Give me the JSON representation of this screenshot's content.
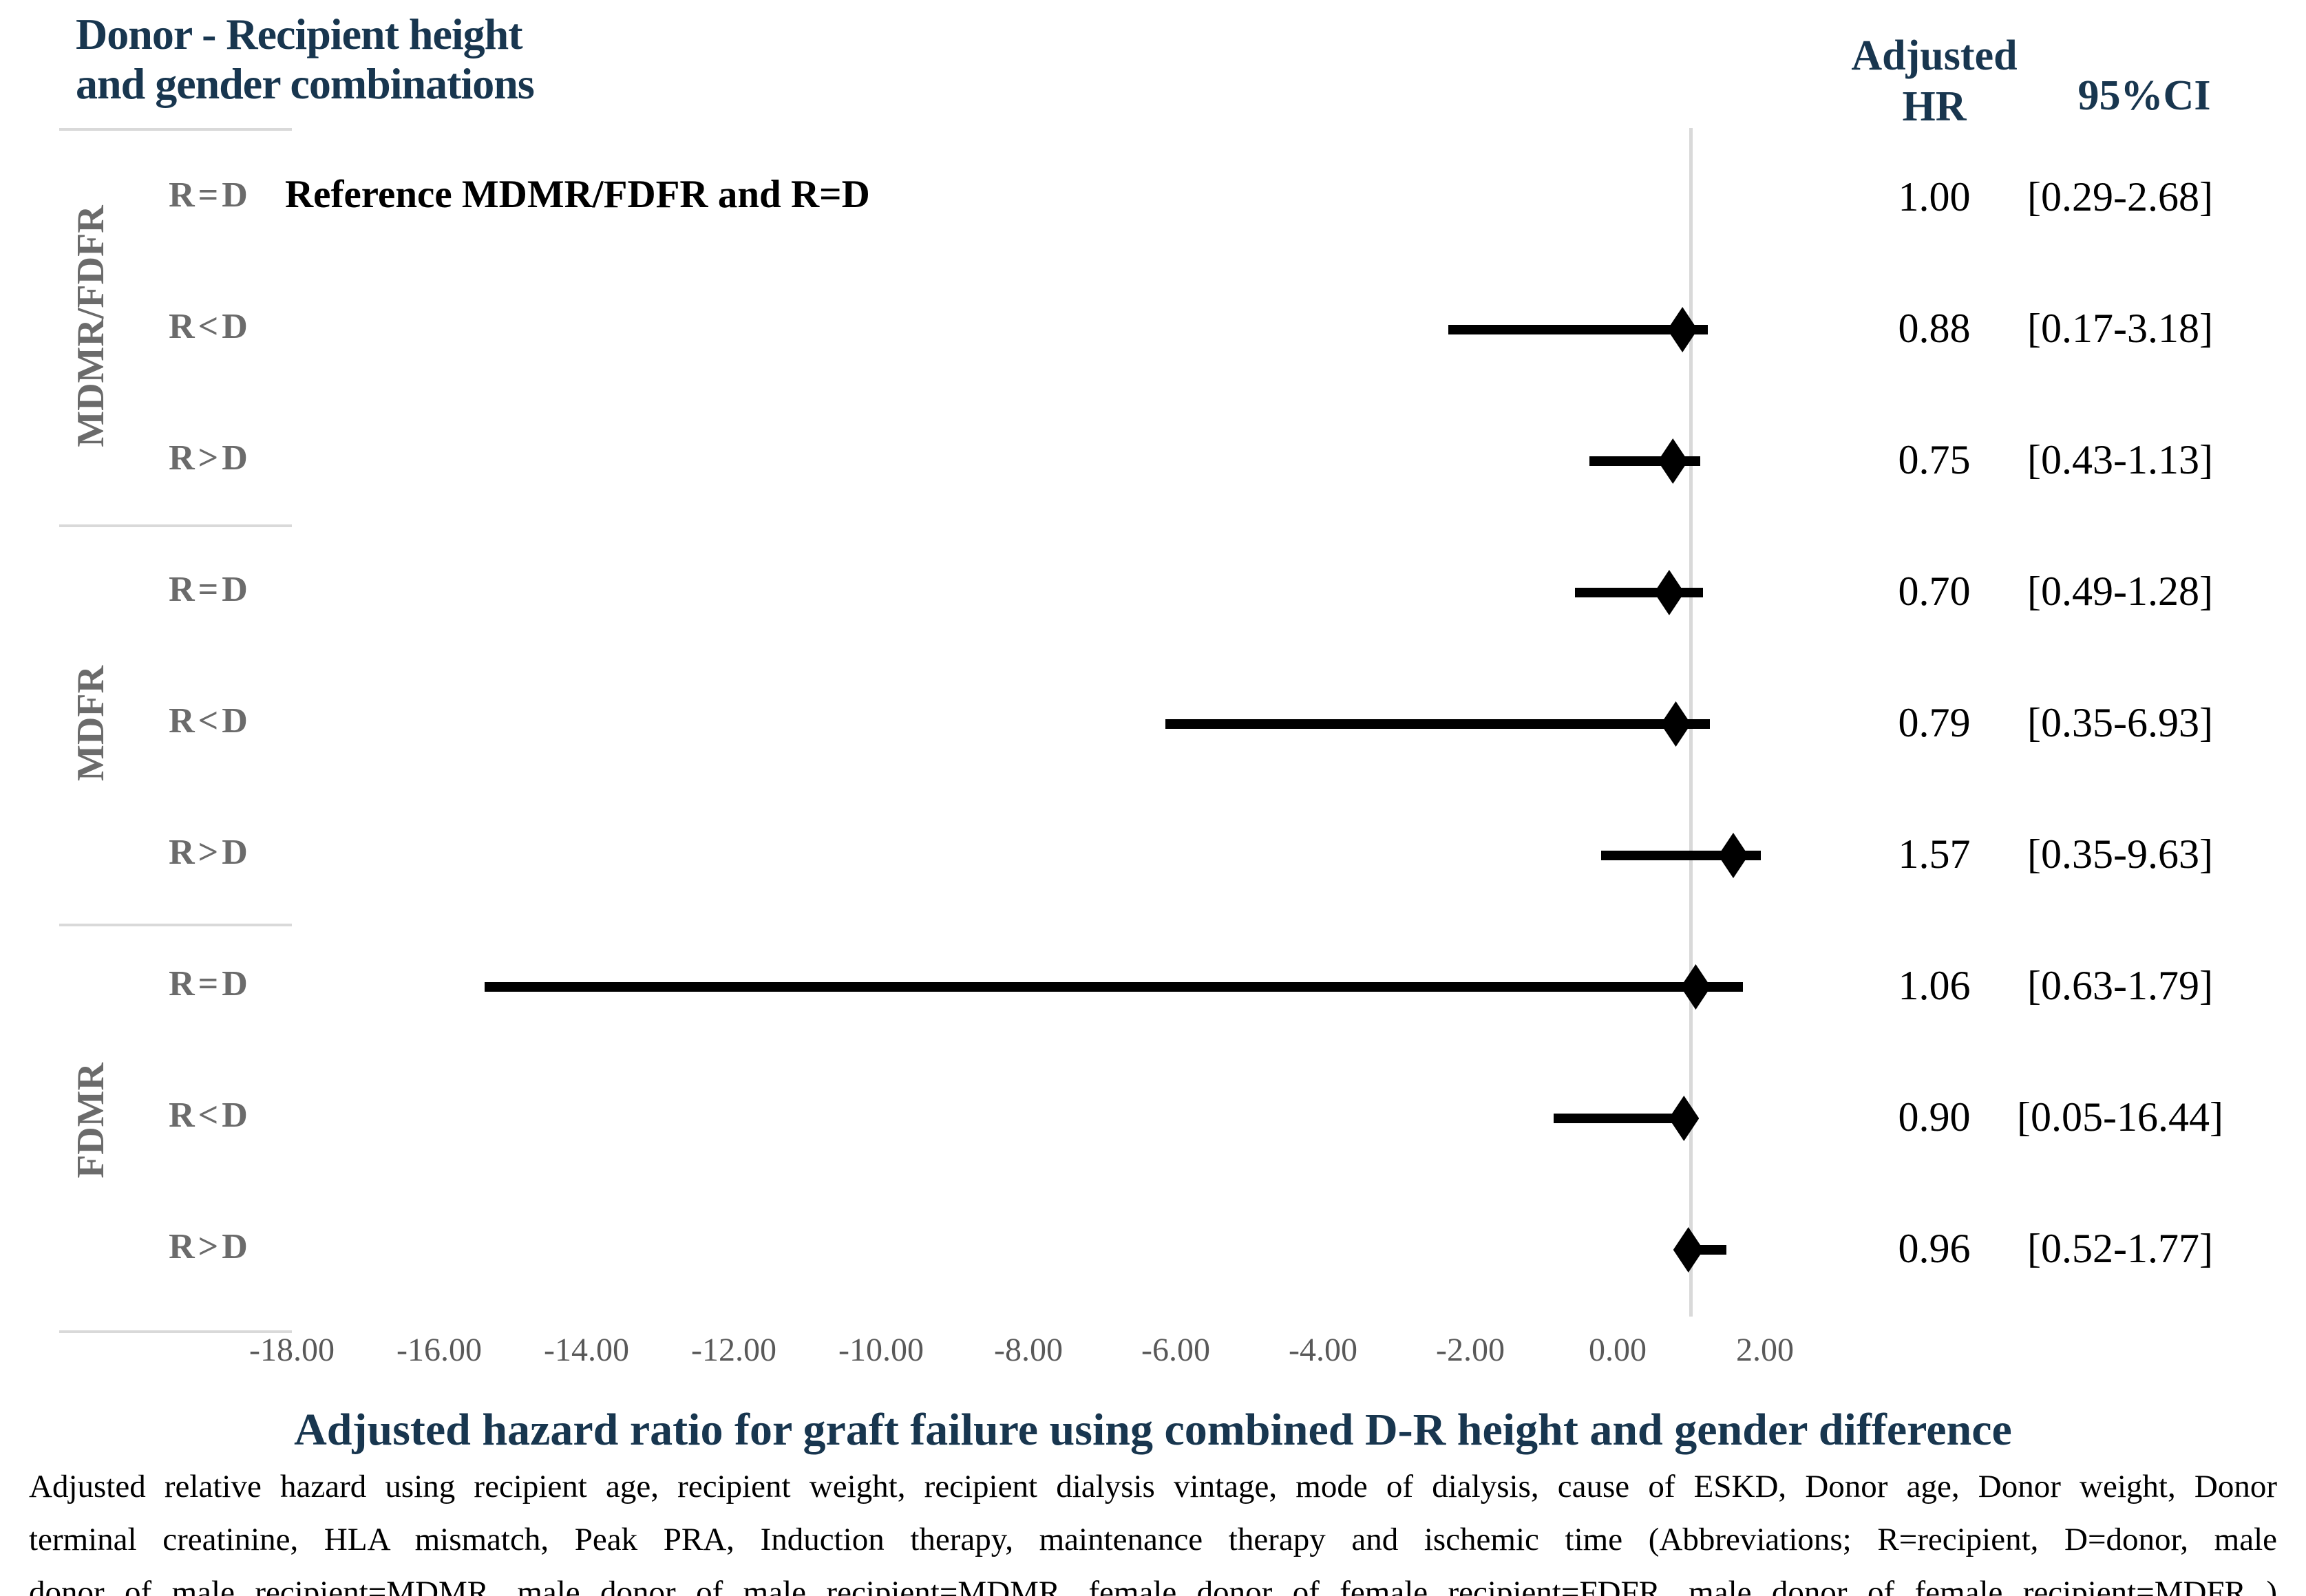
{
  "header": {
    "left_title_line1": "Donor - Recipient height",
    "left_title_line2": "and gender combinations",
    "col_hr_line1": "Adjusted",
    "col_hr_line2": "HR",
    "col_ci": "95%CI"
  },
  "chart_data": {
    "type": "forest",
    "title": "Adjusted hazard ratio for graft failure using combined D-R height and gender difference",
    "x_axis": {
      "min": -18,
      "max": 2,
      "step": 2,
      "tick_labels": [
        "-18.00",
        "-16.00",
        "-14.00",
        "-12.00",
        "-10.00",
        "-8.00",
        "-6.00",
        "-4.00",
        "-2.00",
        "0.00",
        "2.00"
      ],
      "reference_line_value": 1.0,
      "grid": false
    },
    "groups": [
      {
        "name": "MDMR/FDFR"
      },
      {
        "name": "MDFR"
      },
      {
        "name": "FDMR"
      }
    ],
    "rows": [
      {
        "group": "MDMR/FDFR",
        "label": "R=D",
        "reference_note": "Reference MDMR/FDFR and  R=D",
        "hr": 1.0,
        "ci_low": 0.29,
        "ci_high": 2.68,
        "hr_label": "1.00",
        "ci_label": "[0.29-2.68]",
        "marker": null,
        "bar_from": null,
        "bar_to": null
      },
      {
        "group": "MDMR/FDFR",
        "label": "R<D",
        "reference_note": null,
        "hr": 0.88,
        "ci_low": 0.17,
        "ci_high": 3.18,
        "hr_label": "0.88",
        "ci_label": "[0.17-3.18]",
        "marker": 0.88,
        "bar_from": -2.3,
        "bar_to": 1.22
      },
      {
        "group": "MDMR/FDFR",
        "label": "R>D",
        "reference_note": null,
        "hr": 0.75,
        "ci_low": 0.43,
        "ci_high": 1.13,
        "hr_label": "0.75",
        "ci_label": "[0.43-1.13]",
        "marker": 0.75,
        "bar_from": -0.38,
        "bar_to": 1.12
      },
      {
        "group": "MDFR",
        "label": "R=D",
        "reference_note": null,
        "hr": 0.7,
        "ci_low": 0.49,
        "ci_high": 1.28,
        "hr_label": "0.70",
        "ci_label": "[0.49-1.28]",
        "marker": 0.7,
        "bar_from": -0.58,
        "bar_to": 1.16
      },
      {
        "group": "MDFR",
        "label": "R<D",
        "reference_note": null,
        "hr": 0.79,
        "ci_low": 0.35,
        "ci_high": 6.93,
        "hr_label": "0.79",
        "ci_label": "[0.35-6.93]",
        "marker": 0.79,
        "bar_from": -6.14,
        "bar_to": 1.25
      },
      {
        "group": "MDFR",
        "label": "R>D",
        "reference_note": null,
        "hr": 1.57,
        "ci_low": 0.35,
        "ci_high": 9.63,
        "hr_label": "1.57",
        "ci_label": "[0.35-9.63]",
        "marker": 1.57,
        "bar_from": -0.22,
        "bar_to": 1.94
      },
      {
        "group": "FDMR",
        "label": "R=D",
        "reference_note": null,
        "hr": 1.06,
        "ci_low": 0.63,
        "ci_high": 1.79,
        "hr_label": "1.06",
        "ci_label": "[0.63-1.79]",
        "marker": 1.06,
        "bar_from": -15.38,
        "bar_to": 1.7
      },
      {
        "group": "FDMR",
        "label": "R<D",
        "reference_note": null,
        "hr": 0.9,
        "ci_low": 0.05,
        "ci_high": 16.44,
        "hr_label": "0.90",
        "ci_label": "[0.05-16.44]",
        "marker": 0.9,
        "bar_from": -0.87,
        "bar_to": 1.02
      },
      {
        "group": "FDMR",
        "label": "R>D",
        "reference_note": null,
        "hr": 0.96,
        "ci_low": 0.52,
        "ci_high": 1.77,
        "hr_label": "0.96",
        "ci_label": "[0.52-1.77]",
        "marker": 0.96,
        "bar_from": 0.96,
        "bar_to": 1.48
      }
    ]
  },
  "footer": {
    "title": "Adjusted hazard ratio for graft failure using combined D-R height and gender difference",
    "note_lines": [
      "Adjusted relative hazard using recipient age, recipient weight, recipient dialysis vintage, mode of dialysis, cause of ESKD, Donor age, Donor weight, Donor",
      "terminal creatinine, HLA mismatch, Peak PRA, Induction therapy, maintenance therapy and ischemic time (Abbreviations;  R=recipient, D=donor, male",
      "donor of male recipient=MDMR, male donor of male recipient=MDMR, female donor of female recipient=FDFR, male donor of female recipient=MDFR )"
    ],
    "colors": {
      "navy": "#18364F",
      "label_gray": "#6b6b6b",
      "axis_gray": "#595959",
      "line_gray": "#D9D9D9",
      "data_black": "#000000"
    }
  }
}
